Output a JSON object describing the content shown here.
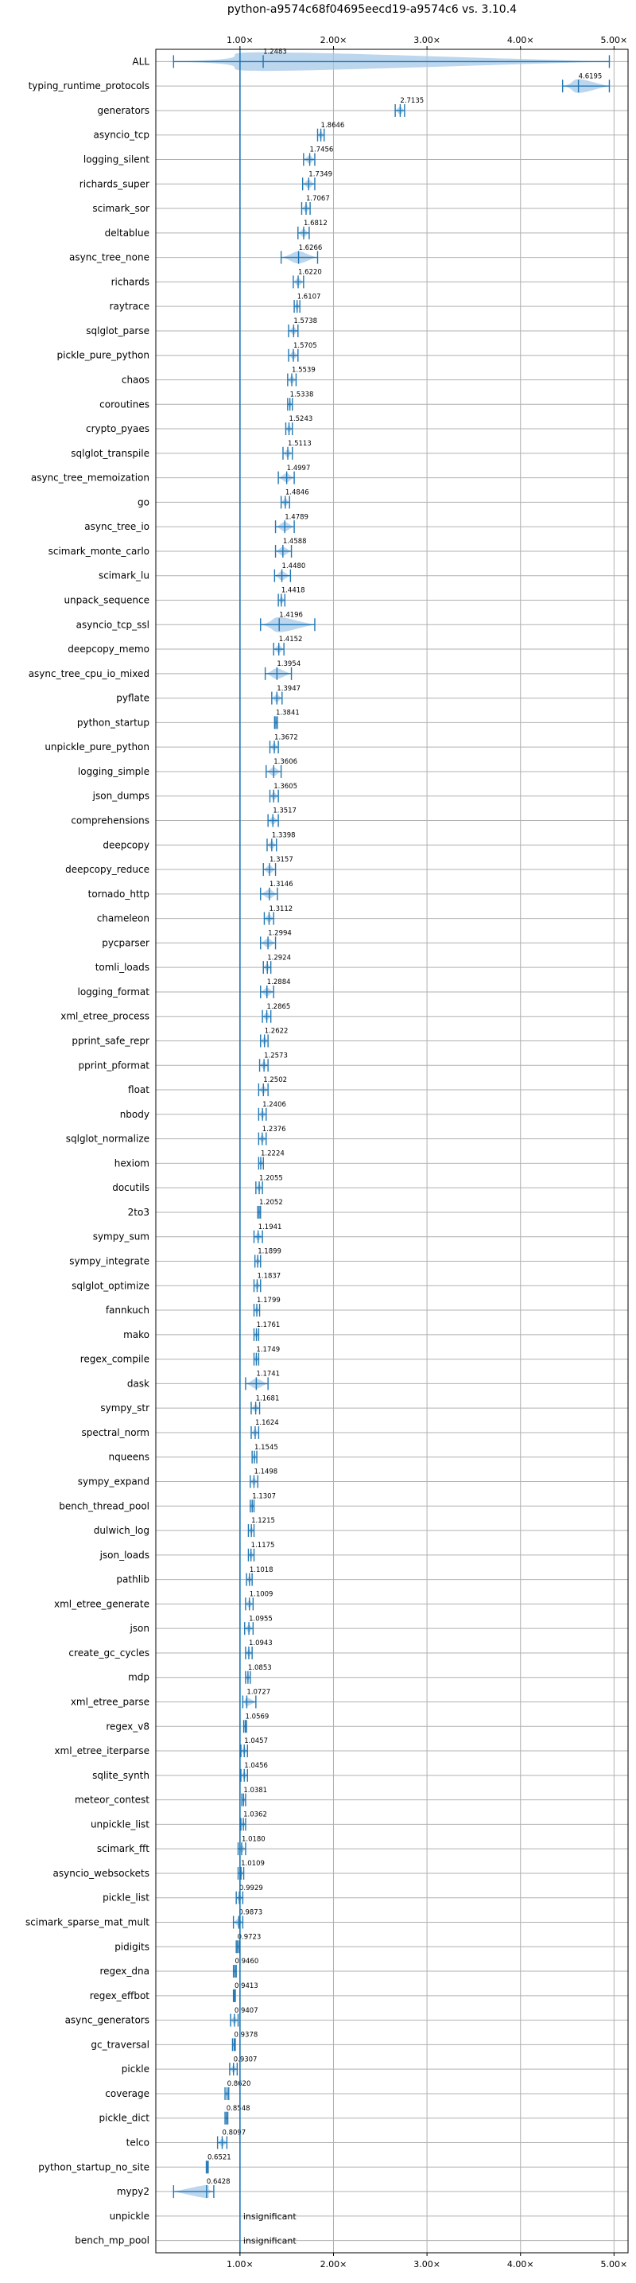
{
  "chart_data": {
    "type": "violin",
    "title": "python-a9574c68f04695eecd19-a9574c6 vs. 3.10.4",
    "xlim": [
      0.1,
      5.15
    ],
    "x_ticks": [
      {
        "value": 1,
        "label": "1.00×"
      },
      {
        "value": 2,
        "label": "2.00×"
      },
      {
        "value": 3,
        "label": "3.00×"
      },
      {
        "value": 4,
        "label": "4.00×"
      },
      {
        "value": 5,
        "label": "5.00×"
      }
    ],
    "reference_line": 1.0,
    "grid": true,
    "colors": {
      "accent": "#1f77b4",
      "violin": "#a6c8e8",
      "grid": "#b0b0b0"
    },
    "insignificant_text": "insignificant",
    "benchmarks": [
      {
        "name": "ALL",
        "value": 1.2483,
        "label": "1.2483",
        "min": 0.29,
        "max": 4.95
      },
      {
        "name": "typing_runtime_protocols",
        "value": 4.6195,
        "label": "4.6195",
        "min": 4.45,
        "max": 4.95
      },
      {
        "name": "generators",
        "value": 2.7135,
        "label": "2.7135",
        "min": 2.66,
        "max": 2.76
      },
      {
        "name": "asyncio_tcp",
        "value": 1.8646,
        "label": "1.8646",
        "min": 1.83,
        "max": 1.9
      },
      {
        "name": "logging_silent",
        "value": 1.7456,
        "label": "1.7456",
        "min": 1.68,
        "max": 1.8
      },
      {
        "name": "richards_super",
        "value": 1.7349,
        "label": "1.7349",
        "min": 1.67,
        "max": 1.8
      },
      {
        "name": "scimark_sor",
        "value": 1.7067,
        "label": "1.7067",
        "min": 1.66,
        "max": 1.75
      },
      {
        "name": "deltablue",
        "value": 1.6812,
        "label": "1.6812",
        "min": 1.62,
        "max": 1.74
      },
      {
        "name": "async_tree_none",
        "value": 1.6266,
        "label": "1.6266",
        "min": 1.44,
        "max": 1.83
      },
      {
        "name": "richards",
        "value": 1.622,
        "label": "1.6220",
        "min": 1.57,
        "max": 1.68
      },
      {
        "name": "raytrace",
        "value": 1.6107,
        "label": "1.6107",
        "min": 1.58,
        "max": 1.64
      },
      {
        "name": "sqlglot_parse",
        "value": 1.5738,
        "label": "1.5738",
        "min": 1.52,
        "max": 1.62
      },
      {
        "name": "pickle_pure_python",
        "value": 1.5705,
        "label": "1.5705",
        "min": 1.52,
        "max": 1.62
      },
      {
        "name": "chaos",
        "value": 1.5539,
        "label": "1.5539",
        "min": 1.51,
        "max": 1.6
      },
      {
        "name": "coroutines",
        "value": 1.5338,
        "label": "1.5338",
        "min": 1.51,
        "max": 1.56
      },
      {
        "name": "crypto_pyaes",
        "value": 1.5243,
        "label": "1.5243",
        "min": 1.49,
        "max": 1.56
      },
      {
        "name": "sqlglot_transpile",
        "value": 1.5113,
        "label": "1.5113",
        "min": 1.46,
        "max": 1.56
      },
      {
        "name": "async_tree_memoization",
        "value": 1.4997,
        "label": "1.4997",
        "min": 1.41,
        "max": 1.58
      },
      {
        "name": "go",
        "value": 1.4846,
        "label": "1.4846",
        "min": 1.44,
        "max": 1.53
      },
      {
        "name": "async_tree_io",
        "value": 1.4789,
        "label": "1.4789",
        "min": 1.38,
        "max": 1.58
      },
      {
        "name": "scimark_monte_carlo",
        "value": 1.4588,
        "label": "1.4588",
        "min": 1.38,
        "max": 1.55
      },
      {
        "name": "scimark_lu",
        "value": 1.448,
        "label": "1.4480",
        "min": 1.37,
        "max": 1.54
      },
      {
        "name": "unpack_sequence",
        "value": 1.4418,
        "label": "1.4418",
        "min": 1.41,
        "max": 1.48
      },
      {
        "name": "asyncio_tcp_ssl",
        "value": 1.4196,
        "label": "1.4196",
        "min": 1.22,
        "max": 1.8
      },
      {
        "name": "deepcopy_memo",
        "value": 1.4152,
        "label": "1.4152",
        "min": 1.36,
        "max": 1.47
      },
      {
        "name": "async_tree_cpu_io_mixed",
        "value": 1.3954,
        "label": "1.3954",
        "min": 1.27,
        "max": 1.55
      },
      {
        "name": "pyflate",
        "value": 1.3947,
        "label": "1.3947",
        "min": 1.34,
        "max": 1.45
      },
      {
        "name": "python_startup",
        "value": 1.3841,
        "label": "1.3841",
        "min": 1.37,
        "max": 1.4
      },
      {
        "name": "unpickle_pure_python",
        "value": 1.3672,
        "label": "1.3672",
        "min": 1.32,
        "max": 1.41
      },
      {
        "name": "logging_simple",
        "value": 1.3606,
        "label": "1.3606",
        "min": 1.28,
        "max": 1.44
      },
      {
        "name": "json_dumps",
        "value": 1.3605,
        "label": "1.3605",
        "min": 1.32,
        "max": 1.41
      },
      {
        "name": "comprehensions",
        "value": 1.3517,
        "label": "1.3517",
        "min": 1.3,
        "max": 1.41
      },
      {
        "name": "deepcopy",
        "value": 1.3398,
        "label": "1.3398",
        "min": 1.29,
        "max": 1.39
      },
      {
        "name": "deepcopy_reduce",
        "value": 1.3157,
        "label": "1.3157",
        "min": 1.25,
        "max": 1.38
      },
      {
        "name": "tornado_http",
        "value": 1.3146,
        "label": "1.3146",
        "min": 1.22,
        "max": 1.4
      },
      {
        "name": "chameleon",
        "value": 1.3112,
        "label": "1.3112",
        "min": 1.26,
        "max": 1.36
      },
      {
        "name": "pycparser",
        "value": 1.2994,
        "label": "1.2994",
        "min": 1.22,
        "max": 1.38
      },
      {
        "name": "tomli_loads",
        "value": 1.2924,
        "label": "1.2924",
        "min": 1.25,
        "max": 1.33
      },
      {
        "name": "logging_format",
        "value": 1.2884,
        "label": "1.2884",
        "min": 1.22,
        "max": 1.36
      },
      {
        "name": "xml_etree_process",
        "value": 1.2865,
        "label": "1.2865",
        "min": 1.24,
        "max": 1.33
      },
      {
        "name": "pprint_safe_repr",
        "value": 1.2622,
        "label": "1.2622",
        "min": 1.22,
        "max": 1.3
      },
      {
        "name": "pprint_pformat",
        "value": 1.2573,
        "label": "1.2573",
        "min": 1.21,
        "max": 1.3
      },
      {
        "name": "float",
        "value": 1.2502,
        "label": "1.2502",
        "min": 1.2,
        "max": 1.3
      },
      {
        "name": "nbody",
        "value": 1.2406,
        "label": "1.2406",
        "min": 1.2,
        "max": 1.28
      },
      {
        "name": "sqlglot_normalize",
        "value": 1.2376,
        "label": "1.2376",
        "min": 1.2,
        "max": 1.28
      },
      {
        "name": "hexiom",
        "value": 1.2224,
        "label": "1.2224",
        "min": 1.2,
        "max": 1.25
      },
      {
        "name": "docutils",
        "value": 1.2055,
        "label": "1.2055",
        "min": 1.17,
        "max": 1.24
      },
      {
        "name": "2to3",
        "value": 1.2052,
        "label": "1.2052",
        "min": 1.19,
        "max": 1.22
      },
      {
        "name": "sympy_sum",
        "value": 1.1941,
        "label": "1.1941",
        "min": 1.15,
        "max": 1.24
      },
      {
        "name": "sympy_integrate",
        "value": 1.1899,
        "label": "1.1899",
        "min": 1.16,
        "max": 1.22
      },
      {
        "name": "sqlglot_optimize",
        "value": 1.1837,
        "label": "1.1837",
        "min": 1.15,
        "max": 1.22
      },
      {
        "name": "fannkuch",
        "value": 1.1799,
        "label": "1.1799",
        "min": 1.15,
        "max": 1.21
      },
      {
        "name": "mako",
        "value": 1.1761,
        "label": "1.1761",
        "min": 1.15,
        "max": 1.2
      },
      {
        "name": "regex_compile",
        "value": 1.1749,
        "label": "1.1749",
        "min": 1.15,
        "max": 1.2
      },
      {
        "name": "dask",
        "value": 1.1741,
        "label": "1.1741",
        "min": 1.06,
        "max": 1.3
      },
      {
        "name": "sympy_str",
        "value": 1.1681,
        "label": "1.1681",
        "min": 1.12,
        "max": 1.21
      },
      {
        "name": "spectral_norm",
        "value": 1.1624,
        "label": "1.1624",
        "min": 1.12,
        "max": 1.2
      },
      {
        "name": "nqueens",
        "value": 1.1545,
        "label": "1.1545",
        "min": 1.13,
        "max": 1.18
      },
      {
        "name": "sympy_expand",
        "value": 1.1498,
        "label": "1.1498",
        "min": 1.11,
        "max": 1.19
      },
      {
        "name": "bench_thread_pool",
        "value": 1.1307,
        "label": "1.1307",
        "min": 1.11,
        "max": 1.15
      },
      {
        "name": "dulwich_log",
        "value": 1.1215,
        "label": "1.1215",
        "min": 1.09,
        "max": 1.15
      },
      {
        "name": "json_loads",
        "value": 1.1175,
        "label": "1.1175",
        "min": 1.09,
        "max": 1.15
      },
      {
        "name": "pathlib",
        "value": 1.1018,
        "label": "1.1018",
        "min": 1.07,
        "max": 1.13
      },
      {
        "name": "xml_etree_generate",
        "value": 1.1009,
        "label": "1.1009",
        "min": 1.06,
        "max": 1.14
      },
      {
        "name": "json",
        "value": 1.0955,
        "label": "1.0955",
        "min": 1.05,
        "max": 1.14
      },
      {
        "name": "create_gc_cycles",
        "value": 1.0943,
        "label": "1.0943",
        "min": 1.06,
        "max": 1.13
      },
      {
        "name": "mdp",
        "value": 1.0853,
        "label": "1.0853",
        "min": 1.06,
        "max": 1.11
      },
      {
        "name": "xml_etree_parse",
        "value": 1.0727,
        "label": "1.0727",
        "min": 1.03,
        "max": 1.17
      },
      {
        "name": "regex_v8",
        "value": 1.0569,
        "label": "1.0569",
        "min": 1.04,
        "max": 1.07
      },
      {
        "name": "xml_etree_iterparse",
        "value": 1.0457,
        "label": "1.0457",
        "min": 1.01,
        "max": 1.08
      },
      {
        "name": "sqlite_synth",
        "value": 1.0456,
        "label": "1.0456",
        "min": 1.01,
        "max": 1.08
      },
      {
        "name": "meteor_contest",
        "value": 1.0381,
        "label": "1.0381",
        "min": 1.02,
        "max": 1.06
      },
      {
        "name": "unpickle_list",
        "value": 1.0362,
        "label": "1.0362",
        "min": 1.01,
        "max": 1.06
      },
      {
        "name": "scimark_fft",
        "value": 1.018,
        "label": "1.0180",
        "min": 0.98,
        "max": 1.06
      },
      {
        "name": "asyncio_websockets",
        "value": 1.0109,
        "label": "1.0109",
        "min": 0.98,
        "max": 1.04
      },
      {
        "name": "pickle_list",
        "value": 0.9929,
        "label": "0.9929",
        "min": 0.96,
        "max": 1.03
      },
      {
        "name": "scimark_sparse_mat_mult",
        "value": 0.9873,
        "label": "0.9873",
        "min": 0.93,
        "max": 1.03
      },
      {
        "name": "pidigits",
        "value": 0.9723,
        "label": "0.9723",
        "min": 0.96,
        "max": 0.99
      },
      {
        "name": "regex_dna",
        "value": 0.946,
        "label": "0.9460",
        "min": 0.93,
        "max": 0.96
      },
      {
        "name": "regex_effbot",
        "value": 0.9413,
        "label": "0.9413",
        "min": 0.93,
        "max": 0.95
      },
      {
        "name": "async_generators",
        "value": 0.9407,
        "label": "0.9407",
        "min": 0.9,
        "max": 0.98
      },
      {
        "name": "gc_traversal",
        "value": 0.9378,
        "label": "0.9378",
        "min": 0.92,
        "max": 0.95
      },
      {
        "name": "pickle",
        "value": 0.9307,
        "label": "0.9307",
        "min": 0.89,
        "max": 0.97
      },
      {
        "name": "coverage",
        "value": 0.862,
        "label": "0.8620",
        "min": 0.84,
        "max": 0.88
      },
      {
        "name": "pickle_dict",
        "value": 0.8548,
        "label": "0.8548",
        "min": 0.84,
        "max": 0.87
      },
      {
        "name": "telco",
        "value": 0.8097,
        "label": "0.8097",
        "min": 0.76,
        "max": 0.86
      },
      {
        "name": "python_startup_no_site",
        "value": 0.6521,
        "label": "0.6521",
        "min": 0.64,
        "max": 0.66
      },
      {
        "name": "mypy2",
        "value": 0.6428,
        "label": "0.6428",
        "min": 0.29,
        "max": 0.72
      },
      {
        "name": "unpickle",
        "value": null,
        "label": "insignificant"
      },
      {
        "name": "bench_mp_pool",
        "value": null,
        "label": "insignificant"
      }
    ]
  }
}
